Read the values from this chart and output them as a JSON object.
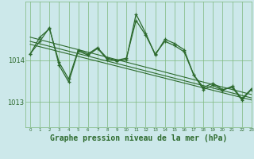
{
  "background_color": "#cce8ea",
  "plot_bg_color": "#cce8ea",
  "grid_color": "#7db87d",
  "line_color": "#2d6a2d",
  "xlabel": "Graphe pression niveau de la mer (hPa)",
  "xlabel_fontsize": 7,
  "yticks": [
    1013,
    1014
  ],
  "xlim": [
    -0.5,
    23
  ],
  "ylim": [
    1012.4,
    1015.4
  ],
  "hours": [
    0,
    1,
    2,
    3,
    4,
    5,
    6,
    7,
    8,
    9,
    10,
    11,
    12,
    13,
    14,
    15,
    16,
    17,
    18,
    19,
    20,
    21,
    22,
    23
  ],
  "series1": [
    1014.15,
    1014.55,
    1014.75,
    1013.95,
    1013.55,
    1014.25,
    1014.15,
    1014.3,
    1014.05,
    1014.0,
    1014.05,
    1014.95,
    1014.6,
    1014.15,
    1014.45,
    1014.35,
    1014.2,
    1013.65,
    1013.35,
    1013.45,
    1013.3,
    1013.35,
    1013.05,
    1013.3
  ],
  "series2": [
    1014.15,
    1014.45,
    1014.78,
    1013.88,
    1013.48,
    1014.22,
    1014.12,
    1014.28,
    1014.02,
    1013.98,
    1014.02,
    1015.1,
    1014.65,
    1014.12,
    1014.5,
    1014.4,
    1014.25,
    1013.65,
    1013.3,
    1013.4,
    1013.28,
    1013.38,
    1013.08,
    1013.32
  ],
  "trend1_x": [
    0,
    23
  ],
  "trend1_y": [
    1014.55,
    1013.18
  ],
  "trend2_x": [
    0,
    23
  ],
  "trend2_y": [
    1014.45,
    1013.1
  ],
  "trend3_x": [
    0,
    23
  ],
  "trend3_y": [
    1014.38,
    1013.05
  ],
  "xtick_labels": [
    "0",
    "1",
    "2",
    "3",
    "4",
    "5",
    "6",
    "7",
    "8",
    "9",
    "10",
    "11",
    "12",
    "13",
    "14",
    "15",
    "16",
    "17",
    "18",
    "19",
    "20",
    "21",
    "22",
    "23"
  ]
}
